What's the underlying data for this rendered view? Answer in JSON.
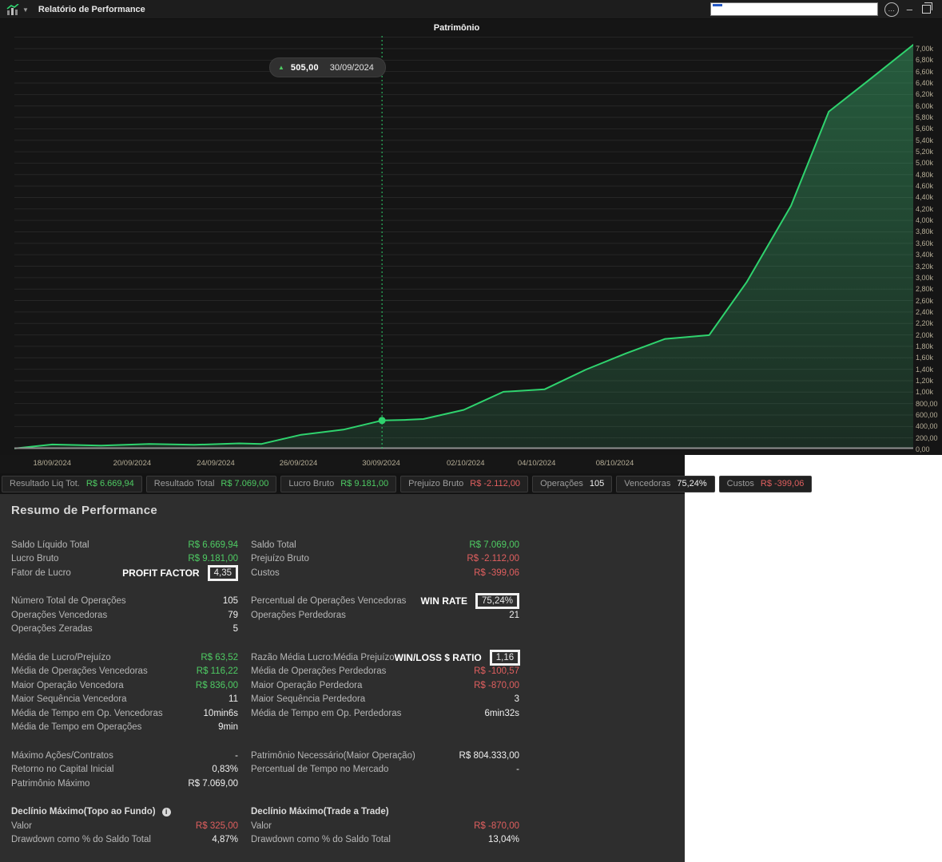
{
  "window": {
    "title": "Relatório de Performance",
    "controls": {
      "more": "…",
      "minimize": "–",
      "search_value": ""
    }
  },
  "colors": {
    "chart_line": "#2fd36e",
    "chart_fill_top": "rgba(62,190,118,0.42)",
    "chart_fill_bottom": "rgba(62,190,118,0.14)",
    "grid": "#262626",
    "axis_line": "#8f8f8f",
    "green": "#4ecb63",
    "red": "#e05f5f",
    "white": "#f0f0f0"
  },
  "chart": {
    "title": "Patrimônio",
    "tooltip": {
      "value": "505,00",
      "date": "30/09/2024"
    },
    "chart_data": {
      "type": "area",
      "title": "Patrimônio",
      "ylim": [
        0,
        7000
      ],
      "grid_step": 200,
      "legend": "none",
      "y_tick_labels": [
        "7,00k",
        "6,80k",
        "6,60k",
        "6,40k",
        "6,20k",
        "6,00k",
        "5,80k",
        "5,60k",
        "5,40k",
        "5,20k",
        "5,00k",
        "4,80k",
        "4,60k",
        "4,40k",
        "4,20k",
        "4,00k",
        "3,80k",
        "3,60k",
        "3,40k",
        "3,20k",
        "3,00k",
        "2,80k",
        "2,60k",
        "2,40k",
        "2,20k",
        "2,00k",
        "1,80k",
        "1,60k",
        "1,40k",
        "1,20k",
        "1,00k",
        "800,00",
        "600,00",
        "400,00",
        "200,00",
        "0,00"
      ],
      "x_ticks": [
        {
          "label": "18/09/2024",
          "f": 0.042
        },
        {
          "label": "20/09/2024",
          "f": 0.131
        },
        {
          "label": "24/09/2024",
          "f": 0.224
        },
        {
          "label": "26/09/2024",
          "f": 0.316
        },
        {
          "label": "30/09/2024",
          "f": 0.408
        },
        {
          "label": "02/10/2024",
          "f": 0.502
        },
        {
          "label": "04/10/2024",
          "f": 0.581
        },
        {
          "label": "08/10/2024",
          "f": 0.668
        }
      ],
      "points": [
        {
          "f": 0.0,
          "v": 15
        },
        {
          "f": 0.042,
          "v": 85
        },
        {
          "f": 0.095,
          "v": 65
        },
        {
          "f": 0.15,
          "v": 95
        },
        {
          "f": 0.2,
          "v": 80
        },
        {
          "f": 0.25,
          "v": 105
        },
        {
          "f": 0.275,
          "v": 95
        },
        {
          "f": 0.319,
          "v": 255
        },
        {
          "f": 0.366,
          "v": 345
        },
        {
          "f": 0.409,
          "v": 505
        },
        {
          "f": 0.434,
          "v": 515
        },
        {
          "f": 0.455,
          "v": 530
        },
        {
          "f": 0.5,
          "v": 690
        },
        {
          "f": 0.544,
          "v": 1005
        },
        {
          "f": 0.59,
          "v": 1050
        },
        {
          "f": 0.636,
          "v": 1395
        },
        {
          "f": 0.68,
          "v": 1675
        },
        {
          "f": 0.724,
          "v": 1930
        },
        {
          "f": 0.773,
          "v": 1995
        },
        {
          "f": 0.815,
          "v": 2930
        },
        {
          "f": 0.864,
          "v": 4255
        },
        {
          "f": 0.906,
          "v": 5900
        },
        {
          "f": 0.953,
          "v": 6480
        },
        {
          "f": 1.0,
          "v": 7069
        }
      ],
      "crosshair": {
        "f": 0.409,
        "v": 505,
        "label": "505,00",
        "date": "30/09/2024"
      }
    }
  },
  "stats_bar": [
    {
      "label": "Resultado Liq Tot.",
      "value": "R$ 6.669,94",
      "c": "g"
    },
    {
      "label": "Resultado Total",
      "value": "R$ 7.069,00",
      "c": "g"
    },
    {
      "label": "Lucro Bruto",
      "value": "R$ 9.181,00",
      "c": "g"
    },
    {
      "label": "Prejuizo Bruto",
      "value": "R$ -2.112,00",
      "c": "r"
    },
    {
      "label": "Operações",
      "value": "105",
      "c": "w"
    },
    {
      "label": "Vencedoras",
      "value": "75,24%",
      "c": "w"
    },
    {
      "label": "Custos",
      "value": "R$ -399,06",
      "c": "r"
    }
  ],
  "summary": {
    "heading": "Resumo de Performance",
    "blocks": [
      {
        "rows": [
          {
            "l": {
              "label": "Saldo Líquido Total",
              "value": "R$ 6.669,94",
              "c": "g"
            },
            "r": {
              "label": "Saldo Total",
              "value": "R$ 7.069,00",
              "c": "g"
            }
          },
          {
            "l": {
              "label": "Lucro Bruto",
              "value": "R$ 9.181,00",
              "c": "g"
            },
            "r": {
              "label": "Prejuízo Bruto",
              "value": "R$ -2.112,00",
              "c": "r"
            }
          },
          {
            "l": {
              "label": "Fator de Lucro",
              "ann": "PROFIT FACTOR",
              "value": "4,35",
              "c": "w",
              "boxed": true
            },
            "r": {
              "label": "Custos",
              "value": "R$ -399,06",
              "c": "r"
            }
          }
        ]
      },
      {
        "rows": [
          {
            "l": {
              "label": "Número Total de Operações",
              "value": "105",
              "c": "w"
            },
            "r": {
              "label": "Percentual de Operações Vencedoras",
              "ann": "WIN RATE",
              "value": "75,24%",
              "c": "w",
              "boxed": true
            }
          },
          {
            "l": {
              "label": "Operações Vencedoras",
              "value": "79",
              "c": "w"
            },
            "r": {
              "label": "Operações Perdedoras",
              "value": "21",
              "c": "w"
            }
          },
          {
            "l": {
              "label": "Operações Zeradas",
              "value": "5",
              "c": "w"
            },
            "r": null
          }
        ]
      },
      {
        "rows": [
          {
            "l": {
              "label": "Média de Lucro/Prejuízo",
              "value": "R$ 63,52",
              "c": "g"
            },
            "r": {
              "label": "Razão Média Lucro:Média Prejuízo",
              "ann": "WIN/LOSS $ RATIO",
              "value": "1,16",
              "c": "w",
              "boxed": true
            }
          },
          {
            "l": {
              "label": "Média de Operações Vencedoras",
              "value": "R$ 116,22",
              "c": "g"
            },
            "r": {
              "label": "Média de Operações Perdedoras",
              "value": "R$ -100,57",
              "c": "r"
            }
          },
          {
            "l": {
              "label": "Maior Operação Vencedora",
              "value": "R$ 836,00",
              "c": "g"
            },
            "r": {
              "label": "Maior Operação Perdedora",
              "value": "R$ -870,00",
              "c": "r"
            }
          },
          {
            "l": {
              "label": "Maior Sequência Vencedora",
              "value": "11",
              "c": "w"
            },
            "r": {
              "label": "Maior Sequência Perdedora",
              "value": "3",
              "c": "w"
            }
          },
          {
            "l": {
              "label": "Média de Tempo em Op. Vencedoras",
              "value": "10min6s",
              "c": "w"
            },
            "r": {
              "label": "Média de Tempo em Op. Perdedoras",
              "value": "6min32s",
              "c": "w"
            }
          },
          {
            "l": {
              "label": "Média de Tempo em Operações",
              "value": "9min",
              "c": "w"
            },
            "r": null
          }
        ]
      },
      {
        "rows": [
          {
            "l": {
              "label": "Máximo Ações/Contratos",
              "value": "-",
              "c": "w"
            },
            "r": {
              "label": "Patrimônio Necessário(Maior Operação)",
              "value": "R$ 804.333,00",
              "c": "w"
            }
          },
          {
            "l": {
              "label": "Retorno no Capital Inicial",
              "value": "0,83%",
              "c": "w"
            },
            "r": {
              "label": "Percentual de Tempo no Mercado",
              "value": "-",
              "c": "w"
            }
          },
          {
            "l": {
              "label": "Patrimônio Máximo",
              "value": "R$ 7.069,00",
              "c": "w"
            },
            "r": null
          }
        ]
      },
      {
        "headings": {
          "left": "Declínio Máximo(Topo ao Fundo)",
          "left_info": true,
          "right": "Declínio Máximo(Trade a Trade)"
        },
        "rows": [
          {
            "l": {
              "label": "Valor",
              "value": "R$ 325,00",
              "c": "r"
            },
            "r": {
              "label": "Valor",
              "value": "R$ -870,00",
              "c": "r"
            }
          },
          {
            "l": {
              "label": "Drawdown como % do Saldo Total",
              "value": "4,87%",
              "c": "w"
            },
            "r": {
              "label": "Drawdown como % do Saldo Total",
              "value": "13,04%",
              "c": "w"
            }
          }
        ]
      }
    ]
  }
}
